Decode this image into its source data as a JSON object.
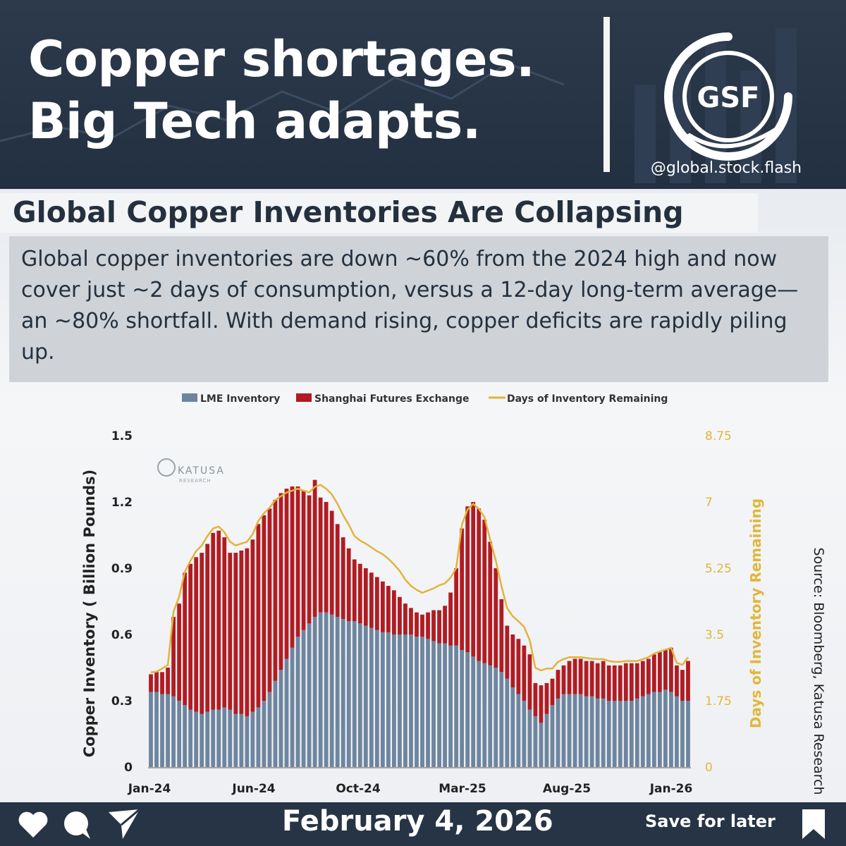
{
  "header": {
    "headline_line1": "Copper shortages.",
    "headline_line2": "Big Tech adapts.",
    "logo_text": "GSF",
    "handle": "@global.stock.flash"
  },
  "title": "Global Copper Inventories Are Collapsing",
  "description": "Global copper inventories are down ~60% from the 2024 high and now cover just ~2 days of consumption, versus a 12-day long-term average—an ~80% shortfall. With demand rising, copper deficits are rapidly piling up.",
  "watermark": {
    "line1": "KATUSA",
    "line2": "RESEARCH"
  },
  "source": "Source: Bloomberg, Katusa Research",
  "footer": {
    "date": "February 4, 2026",
    "save_label": "Save for later"
  },
  "icons": [
    "heart-icon",
    "comment-icon",
    "send-icon",
    "bookmark-icon"
  ],
  "colors": {
    "lme": "#6e859f",
    "shanghai": "#b01c22",
    "days_line": "#e2b43a",
    "header_bg": "#2a3849"
  },
  "chart_data": {
    "type": "bar",
    "stacked": true,
    "x_tick_labels": [
      "Jan-24",
      "Jun-24",
      "Oct-24",
      "Mar-25",
      "Aug-25",
      "Jan-26"
    ],
    "ylabel": "Copper Inventory ( Billion Pounds)",
    "ylim": [
      0,
      1.5
    ],
    "yticks": [
      0,
      0.3,
      0.6,
      0.9,
      1.2,
      1.5
    ],
    "y2label": "Days of Inventory Remaining",
    "y2lim": [
      0,
      8.75
    ],
    "y2ticks": [
      0,
      1.75,
      3.5,
      5.25,
      7,
      8.75
    ],
    "legend_position": "top",
    "grid": false,
    "series": [
      {
        "name": "LME Inventory",
        "type": "bar",
        "values": [
          0.34,
          0.34,
          0.33,
          0.33,
          0.32,
          0.3,
          0.28,
          0.26,
          0.25,
          0.24,
          0.25,
          0.26,
          0.26,
          0.27,
          0.26,
          0.24,
          0.24,
          0.23,
          0.25,
          0.27,
          0.3,
          0.34,
          0.39,
          0.44,
          0.49,
          0.54,
          0.59,
          0.62,
          0.65,
          0.68,
          0.7,
          0.7,
          0.69,
          0.68,
          0.67,
          0.66,
          0.66,
          0.65,
          0.64,
          0.63,
          0.62,
          0.61,
          0.61,
          0.6,
          0.6,
          0.6,
          0.6,
          0.59,
          0.59,
          0.58,
          0.57,
          0.56,
          0.56,
          0.55,
          0.55,
          0.53,
          0.52,
          0.5,
          0.48,
          0.47,
          0.46,
          0.45,
          0.43,
          0.4,
          0.36,
          0.33,
          0.3,
          0.26,
          0.23,
          0.2,
          0.24,
          0.28,
          0.31,
          0.33,
          0.33,
          0.33,
          0.33,
          0.32,
          0.32,
          0.31,
          0.31,
          0.3,
          0.3,
          0.3,
          0.3,
          0.3,
          0.31,
          0.32,
          0.33,
          0.34,
          0.34,
          0.35,
          0.34,
          0.32,
          0.3,
          0.3
        ]
      },
      {
        "name": "Shanghai Futures Exchange",
        "type": "bar",
        "values": [
          0.08,
          0.09,
          0.1,
          0.12,
          0.36,
          0.44,
          0.6,
          0.66,
          0.7,
          0.73,
          0.76,
          0.8,
          0.81,
          0.77,
          0.71,
          0.73,
          0.74,
          0.76,
          0.78,
          0.83,
          0.84,
          0.83,
          0.82,
          0.8,
          0.77,
          0.73,
          0.68,
          0.63,
          0.58,
          0.62,
          0.52,
          0.5,
          0.47,
          0.42,
          0.37,
          0.33,
          0.28,
          0.27,
          0.26,
          0.25,
          0.24,
          0.23,
          0.21,
          0.2,
          0.17,
          0.14,
          0.12,
          0.11,
          0.1,
          0.12,
          0.14,
          0.15,
          0.17,
          0.24,
          0.35,
          0.55,
          0.66,
          0.7,
          0.69,
          0.65,
          0.56,
          0.45,
          0.33,
          0.24,
          0.24,
          0.25,
          0.25,
          0.25,
          0.15,
          0.17,
          0.14,
          0.12,
          0.13,
          0.13,
          0.15,
          0.16,
          0.16,
          0.16,
          0.16,
          0.16,
          0.17,
          0.16,
          0.16,
          0.16,
          0.17,
          0.17,
          0.16,
          0.16,
          0.16,
          0.17,
          0.18,
          0.18,
          0.2,
          0.14,
          0.14,
          0.18
        ]
      },
      {
        "name": "Days of Inventory Remaining",
        "type": "line",
        "axis": "right",
        "values": [
          2.5,
          2.52,
          2.6,
          2.7,
          4.1,
          4.5,
          5.15,
          5.45,
          5.7,
          5.85,
          6.1,
          6.3,
          6.35,
          6.2,
          5.95,
          5.85,
          5.9,
          5.95,
          6.15,
          6.5,
          6.7,
          6.85,
          7.05,
          7.15,
          7.25,
          7.3,
          7.35,
          7.3,
          7.25,
          7.4,
          7.45,
          7.35,
          7.2,
          6.95,
          6.65,
          6.4,
          6.1,
          5.98,
          5.9,
          5.8,
          5.7,
          5.62,
          5.5,
          5.35,
          5.18,
          4.95,
          4.78,
          4.68,
          4.6,
          4.66,
          4.72,
          4.8,
          4.85,
          5.0,
          5.25,
          6.4,
          6.8,
          6.95,
          6.82,
          6.6,
          6.0,
          5.45,
          4.78,
          4.2,
          3.98,
          3.85,
          3.7,
          3.35,
          2.62,
          2.55,
          2.6,
          2.6,
          2.78,
          2.85,
          2.9,
          2.9,
          2.9,
          2.88,
          2.86,
          2.85,
          2.85,
          2.8,
          2.78,
          2.78,
          2.8,
          2.8,
          2.8,
          2.85,
          2.9,
          3.0,
          3.05,
          3.1,
          3.15,
          2.75,
          2.7,
          2.9
        ]
      }
    ]
  }
}
